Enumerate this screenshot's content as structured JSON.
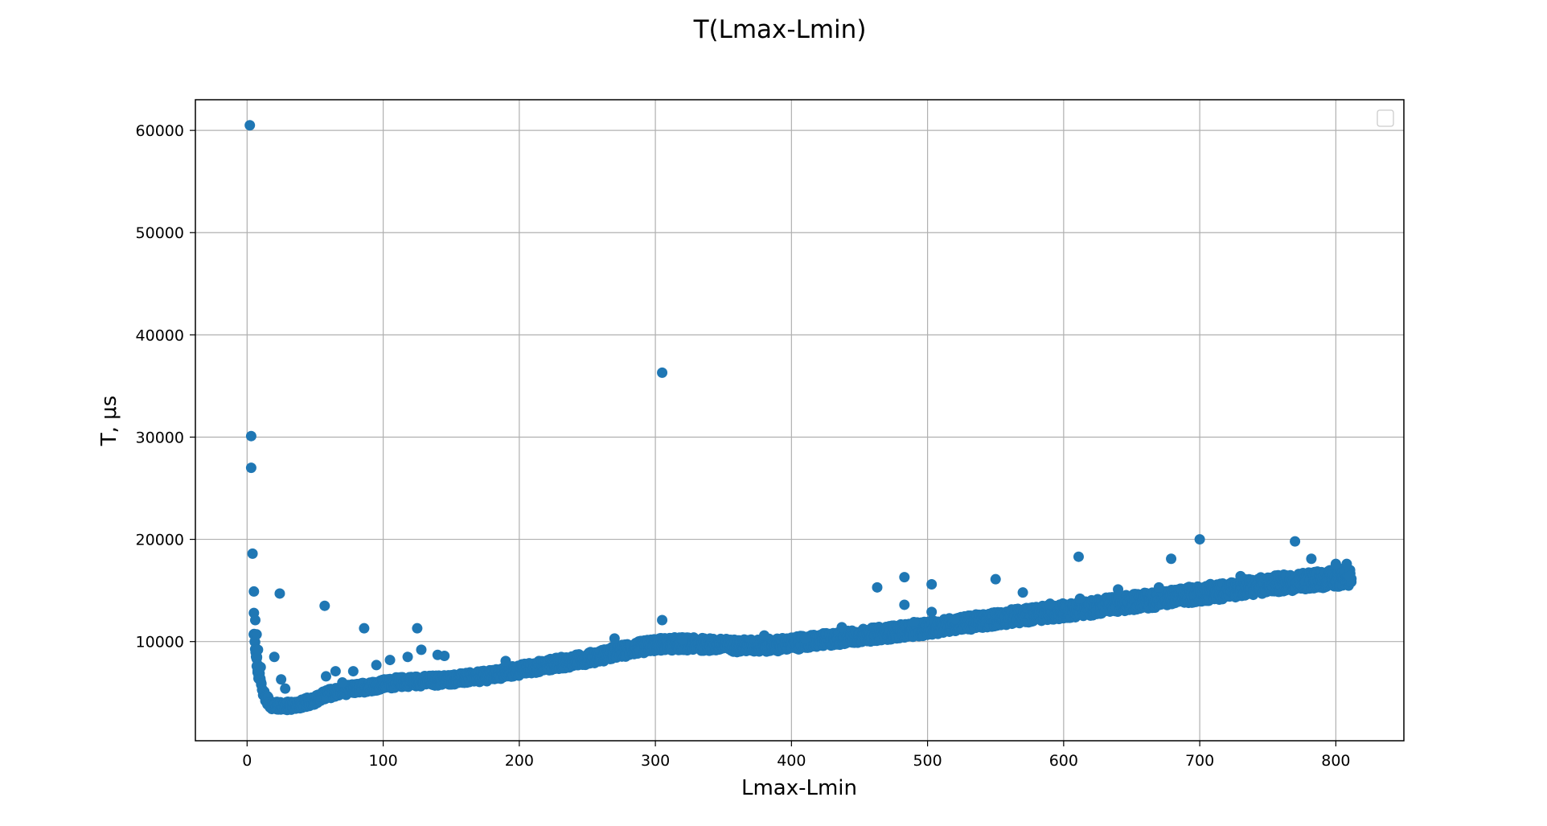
{
  "chart_data": {
    "type": "scatter",
    "title": "T(Lmax-Lmin)",
    "xlabel": "Lmax-Lmin",
    "ylabel": "T, μs",
    "xlim": [
      -38,
      850
    ],
    "ylim": [
      300,
      63000
    ],
    "x_ticks": [
      0,
      100,
      200,
      300,
      400,
      500,
      600,
      700,
      800
    ],
    "y_ticks": [
      10000,
      20000,
      30000,
      40000,
      50000,
      60000
    ],
    "grid": true,
    "legend": {
      "placement": "top-right",
      "entries": []
    },
    "marker_color": "#1f77b4",
    "trend": [
      [
        5,
        10500
      ],
      [
        8,
        7000
      ],
      [
        12,
        5000
      ],
      [
        16,
        4000
      ],
      [
        20,
        3700
      ],
      [
        30,
        3700
      ],
      [
        40,
        3900
      ],
      [
        50,
        4300
      ],
      [
        60,
        4900
      ],
      [
        70,
        5200
      ],
      [
        80,
        5400
      ],
      [
        90,
        5600
      ],
      [
        100,
        5800
      ],
      [
        110,
        6000
      ],
      [
        120,
        6100
      ],
      [
        140,
        6200
      ],
      [
        160,
        6400
      ],
      [
        180,
        6700
      ],
      [
        200,
        7200
      ],
      [
        220,
        7700
      ],
      [
        240,
        8100
      ],
      [
        260,
        8600
      ],
      [
        280,
        9200
      ],
      [
        300,
        9700
      ],
      [
        320,
        9800
      ],
      [
        340,
        9700
      ],
      [
        360,
        9600
      ],
      [
        380,
        9600
      ],
      [
        400,
        9800
      ],
      [
        420,
        10100
      ],
      [
        440,
        10400
      ],
      [
        460,
        10700
      ],
      [
        480,
        11000
      ],
      [
        500,
        11300
      ],
      [
        520,
        11700
      ],
      [
        540,
        12000
      ],
      [
        560,
        12400
      ],
      [
        580,
        12700
      ],
      [
        600,
        13000
      ],
      [
        620,
        13300
      ],
      [
        640,
        13700
      ],
      [
        660,
        14000
      ],
      [
        680,
        14300
      ],
      [
        700,
        14700
      ],
      [
        720,
        15000
      ],
      [
        740,
        15400
      ],
      [
        760,
        15700
      ],
      [
        780,
        16000
      ],
      [
        800,
        16200
      ],
      [
        812,
        16300
      ]
    ],
    "outliers": [
      [
        2,
        60500
      ],
      [
        3,
        30100
      ],
      [
        3,
        27000
      ],
      [
        4,
        18600
      ],
      [
        5,
        14900
      ],
      [
        5,
        12800
      ],
      [
        6,
        12100
      ],
      [
        7,
        10700
      ],
      [
        8,
        9200
      ],
      [
        10,
        7500
      ],
      [
        20,
        8500
      ],
      [
        24,
        14700
      ],
      [
        25,
        6300
      ],
      [
        28,
        5400
      ],
      [
        57,
        13500
      ],
      [
        58,
        6600
      ],
      [
        65,
        7100
      ],
      [
        70,
        6000
      ],
      [
        78,
        7100
      ],
      [
        86,
        11300
      ],
      [
        95,
        7700
      ],
      [
        105,
        8200
      ],
      [
        118,
        8500
      ],
      [
        125,
        11300
      ],
      [
        128,
        9200
      ],
      [
        140,
        8700
      ],
      [
        145,
        8600
      ],
      [
        190,
        8100
      ],
      [
        270,
        10300
      ],
      [
        305,
        36300
      ],
      [
        305,
        12100
      ],
      [
        320,
        10200
      ],
      [
        380,
        10600
      ],
      [
        410,
        10300
      ],
      [
        437,
        11400
      ],
      [
        463,
        15300
      ],
      [
        483,
        16300
      ],
      [
        483,
        13600
      ],
      [
        490,
        11900
      ],
      [
        503,
        15600
      ],
      [
        503,
        12900
      ],
      [
        520,
        12200
      ],
      [
        550,
        16100
      ],
      [
        570,
        14800
      ],
      [
        590,
        13700
      ],
      [
        611,
        18300
      ],
      [
        612,
        14200
      ],
      [
        640,
        15100
      ],
      [
        670,
        15300
      ],
      [
        679,
        18100
      ],
      [
        700,
        20000
      ],
      [
        730,
        16400
      ],
      [
        770,
        19800
      ],
      [
        782,
        18100
      ],
      [
        800,
        17600
      ],
      [
        808,
        17600
      ],
      [
        810,
        16400
      ]
    ]
  }
}
